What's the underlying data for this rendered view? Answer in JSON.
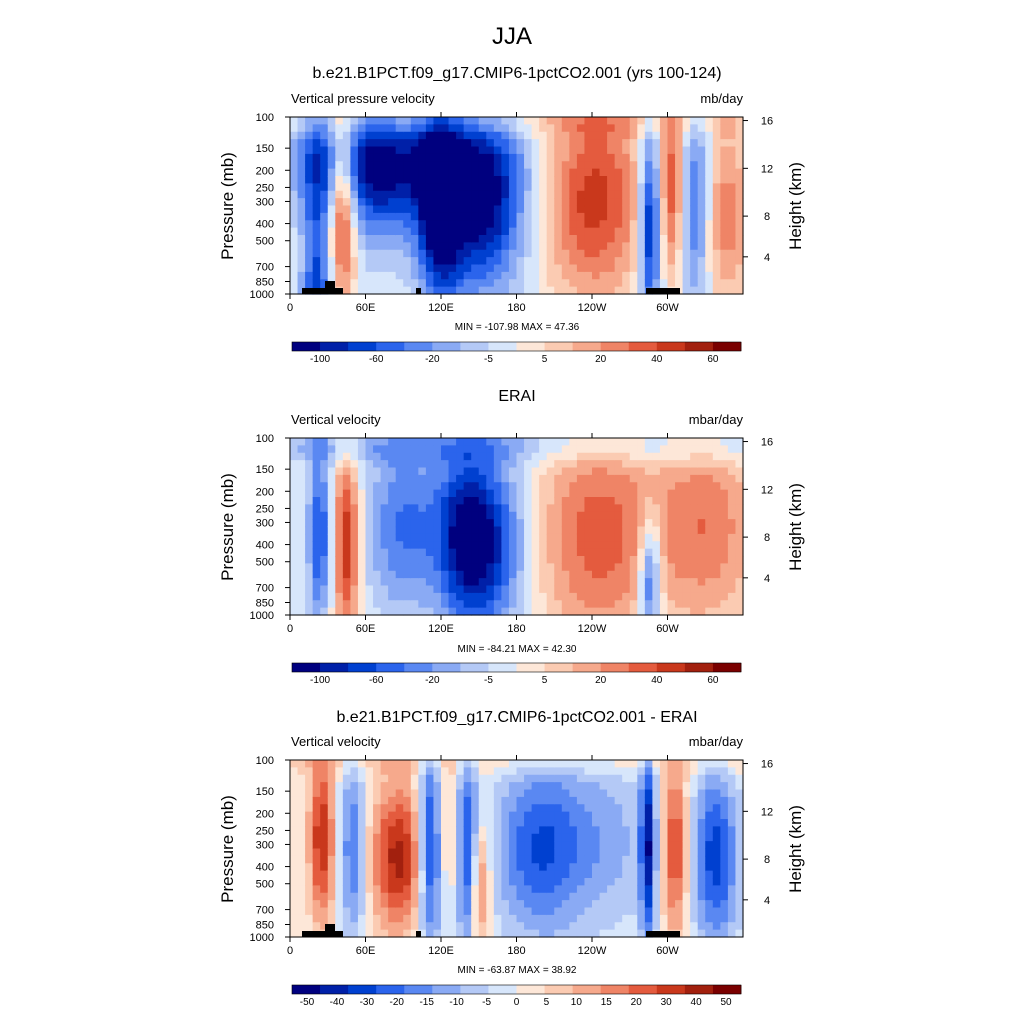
{
  "figure": {
    "title": "JJA"
  },
  "colors": {
    "scale": [
      "#00007f",
      "#0020a8",
      "#0040d0",
      "#2b64ec",
      "#5a88f2",
      "#8aaaf4",
      "#b4c9f6",
      "#d7e6fb",
      "#fde7d8",
      "#fbcbb2",
      "#f6a98c",
      "#ef8466",
      "#e45b3e",
      "#c9381c",
      "#a2200e",
      "#7a0000"
    ],
    "land": "#000000"
  },
  "chart_data": [
    {
      "type": "heatmap",
      "case_title": "b.e21.B1PCT.f09_g17.CMIP6-1pctCO2.001 (yrs 100-124)",
      "subtitle_left": "Vertical pressure velocity",
      "subtitle_right": "mb/day",
      "ylabel": "Pressure (mb)",
      "ylabel_right": "Height (km)",
      "x_ticks": [
        "0",
        "60E",
        "120E",
        "180",
        "120W",
        "60W"
      ],
      "y_ticks": [
        "100",
        "150",
        "200",
        "250",
        "300",
        "400",
        "500",
        "700",
        "850",
        "1000"
      ],
      "y_ticks_right": [
        "16",
        "12",
        "8",
        "4"
      ],
      "min_max": "MIN = -107.98  MAX =  47.36",
      "colorbar_labels": [
        "-100",
        "-60",
        "-20",
        "-5",
        "5",
        "20",
        "40",
        "60"
      ],
      "value_range": [
        -107.98,
        47.36
      ],
      "has_land_mask": true
    },
    {
      "type": "heatmap",
      "case_title": "ERAI",
      "subtitle_left": "Vertical velocity",
      "subtitle_right": "mbar/day",
      "ylabel": "Pressure (mb)",
      "ylabel_right": "Height (km)",
      "x_ticks": [
        "0",
        "60E",
        "120E",
        "180",
        "120W",
        "60W"
      ],
      "y_ticks": [
        "100",
        "150",
        "200",
        "250",
        "300",
        "400",
        "500",
        "700",
        "850",
        "1000"
      ],
      "y_ticks_right": [
        "16",
        "12",
        "8",
        "4"
      ],
      "min_max": "MIN = -84.21  MAX =  42.30",
      "colorbar_labels": [
        "-100",
        "-60",
        "-20",
        "-5",
        "5",
        "20",
        "40",
        "60"
      ],
      "value_range": [
        -84.21,
        42.3
      ],
      "has_land_mask": false
    },
    {
      "type": "heatmap",
      "case_title": "b.e21.B1PCT.f09_g17.CMIP6-1pctCO2.001 - ERAI",
      "subtitle_left": "Vertical velocity",
      "subtitle_right": "mbar/day",
      "ylabel": "Pressure (mb)",
      "ylabel_right": "Height (km)",
      "x_ticks": [
        "0",
        "60E",
        "120E",
        "180",
        "120W",
        "60W"
      ],
      "y_ticks": [
        "100",
        "150",
        "200",
        "250",
        "300",
        "400",
        "500",
        "700",
        "850",
        "1000"
      ],
      "y_ticks_right": [
        "16",
        "12",
        "8",
        "4"
      ],
      "min_max": "MIN = -63.87  MAX =  38.92",
      "colorbar_labels": [
        "-50",
        "-40",
        "-30",
        "-20",
        "-15",
        "-10",
        "-5",
        "0",
        "5",
        "10",
        "15",
        "20",
        "30",
        "40",
        "50"
      ],
      "value_range": [
        -63.87,
        38.92
      ],
      "has_land_mask": true
    }
  ]
}
